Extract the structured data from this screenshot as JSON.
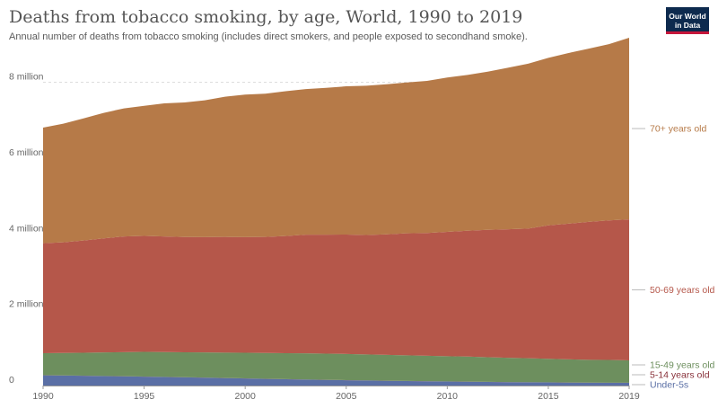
{
  "header": {
    "title": "Deaths from tobacco smoking, by age, World, 1990 to 2019",
    "subtitle": "Annual number of deaths from tobacco smoking (includes direct smokers, and people exposed to secondhand smoke).",
    "logo_line1": "Our World",
    "logo_line2": "in Data"
  },
  "chart_data": {
    "type": "area",
    "stacked": true,
    "title": "Deaths from tobacco smoking, by age, World, 1990 to 2019",
    "x": [
      1990,
      1991,
      1992,
      1993,
      1994,
      1995,
      1996,
      1997,
      1998,
      1999,
      2000,
      2001,
      2002,
      2003,
      2004,
      2005,
      2006,
      2007,
      2008,
      2009,
      2010,
      2011,
      2012,
      2013,
      2014,
      2015,
      2016,
      2017,
      2018,
      2019
    ],
    "xticks": [
      1990,
      1995,
      2000,
      2005,
      2010,
      2015,
      2019
    ],
    "xlim": [
      1990,
      2019
    ],
    "yticks": [
      {
        "value": 0,
        "label": "0"
      },
      {
        "value": 2000000,
        "label": "2 million"
      },
      {
        "value": 4000000,
        "label": "4 million"
      },
      {
        "value": 6000000,
        "label": "6 million"
      },
      {
        "value": 8000000,
        "label": "8 million"
      }
    ],
    "ylim": [
      0,
      8700000
    ],
    "grid": true,
    "legend": "right, labels at end of each area",
    "series": [
      {
        "name": "Under-5s",
        "color": "#5a6fa5",
        "values": [
          270000,
          265000,
          258000,
          250000,
          243000,
          235000,
          225000,
          215000,
          206000,
          196000,
          186000,
          176000,
          166000,
          157000,
          148000,
          140000,
          132000,
          125000,
          118000,
          112000,
          106000,
          100000,
          95000,
          90000,
          86000,
          82000,
          78000,
          75000,
          72000,
          70000
        ]
      },
      {
        "name": "5-14 years old",
        "color": "#883039",
        "values": [
          3000,
          3000,
          3000,
          3000,
          3000,
          3000,
          3000,
          3000,
          3000,
          3000,
          3000,
          3000,
          3000,
          3000,
          3000,
          3000,
          3000,
          3000,
          3000,
          3000,
          3000,
          3000,
          3000,
          3000,
          3000,
          3000,
          3000,
          3000,
          3000,
          3000
        ]
      },
      {
        "name": "15-49 years old",
        "color": "#6d8f5e",
        "values": [
          580000,
          590000,
          605000,
          620000,
          635000,
          650000,
          655000,
          660000,
          665000,
          670000,
          675000,
          680000,
          685000,
          690000,
          690000,
          690000,
          685000,
          680000,
          675000,
          670000,
          665000,
          660000,
          650000,
          640000,
          630000,
          620000,
          610000,
          600000,
          600000,
          590000
        ]
      },
      {
        "name": "50-69 years old",
        "color": "#b5574a",
        "values": [
          2900000,
          2920000,
          2960000,
          3010000,
          3050000,
          3060000,
          3050000,
          3040000,
          3040000,
          3050000,
          3050000,
          3060000,
          3090000,
          3130000,
          3140000,
          3150000,
          3150000,
          3180000,
          3220000,
          3240000,
          3280000,
          3320000,
          3360000,
          3390000,
          3420000,
          3520000,
          3580000,
          3640000,
          3680000,
          3720000
        ]
      },
      {
        "name": "70+ years old",
        "color": "#b67a48",
        "values": [
          3050000,
          3130000,
          3220000,
          3310000,
          3380000,
          3430000,
          3510000,
          3550000,
          3610000,
          3700000,
          3760000,
          3780000,
          3820000,
          3840000,
          3870000,
          3910000,
          3940000,
          3960000,
          3980000,
          4010000,
          4070000,
          4110000,
          4170000,
          4260000,
          4350000,
          4420000,
          4500000,
          4570000,
          4650000,
          4790000
        ]
      }
    ]
  }
}
